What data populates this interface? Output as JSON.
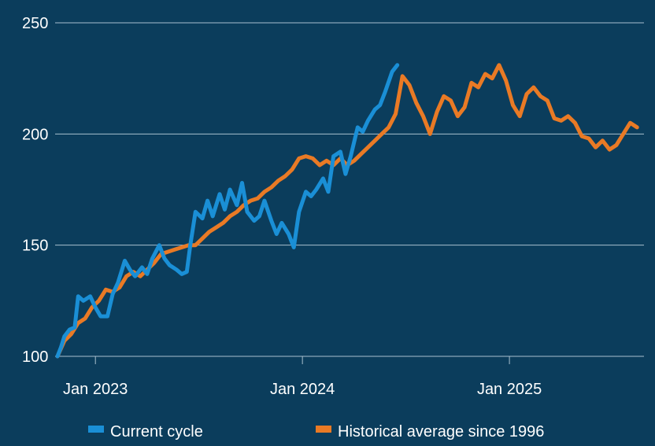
{
  "chart_data": {
    "type": "line",
    "title": "",
    "xlabel": "",
    "ylabel": "",
    "x_axis_unit": "months from Oct 2022",
    "xlim": [
      0.8,
      34.8
    ],
    "ylim": [
      100,
      250
    ],
    "yticks": [
      100,
      150,
      200,
      250
    ],
    "xticks": [
      {
        "label": "Jan 2023",
        "x": 3
      },
      {
        "label": "Jan 2024",
        "x": 15
      },
      {
        "label": "Jan 2025",
        "x": 27
      }
    ],
    "grid": true,
    "legend_position": "bottom",
    "series": [
      {
        "name": "Current cycle",
        "color": "#1a8fd6",
        "points": [
          [
            0.8,
            100
          ],
          [
            1.0,
            104
          ],
          [
            1.2,
            109
          ],
          [
            1.5,
            112
          ],
          [
            1.8,
            113
          ],
          [
            2.0,
            127
          ],
          [
            2.3,
            125
          ],
          [
            2.7,
            127
          ],
          [
            3.0,
            122
          ],
          [
            3.3,
            118
          ],
          [
            3.7,
            118
          ],
          [
            4.0,
            128
          ],
          [
            4.3,
            133
          ],
          [
            4.7,
            143
          ],
          [
            5.0,
            139
          ],
          [
            5.3,
            136
          ],
          [
            5.7,
            140
          ],
          [
            6.0,
            137
          ],
          [
            6.3,
            144
          ],
          [
            6.7,
            150
          ],
          [
            7.0,
            144
          ],
          [
            7.3,
            141
          ],
          [
            7.7,
            139
          ],
          [
            8.0,
            137
          ],
          [
            8.3,
            138
          ],
          [
            8.5,
            150
          ],
          [
            8.8,
            165
          ],
          [
            9.2,
            162
          ],
          [
            9.5,
            170
          ],
          [
            9.8,
            163
          ],
          [
            10.2,
            173
          ],
          [
            10.5,
            166
          ],
          [
            10.8,
            175
          ],
          [
            11.2,
            168
          ],
          [
            11.5,
            178
          ],
          [
            11.8,
            165
          ],
          [
            12.2,
            161
          ],
          [
            12.5,
            163
          ],
          [
            12.8,
            170
          ],
          [
            13.2,
            161
          ],
          [
            13.5,
            155
          ],
          [
            13.8,
            160
          ],
          [
            14.2,
            155
          ],
          [
            14.5,
            149
          ],
          [
            14.8,
            165
          ],
          [
            15.2,
            174
          ],
          [
            15.5,
            172
          ],
          [
            15.8,
            175
          ],
          [
            16.2,
            180
          ],
          [
            16.5,
            174
          ],
          [
            16.8,
            190
          ],
          [
            17.2,
            192
          ],
          [
            17.5,
            182
          ],
          [
            17.8,
            190
          ],
          [
            18.2,
            203
          ],
          [
            18.5,
            201
          ],
          [
            18.8,
            206
          ],
          [
            19.2,
            211
          ],
          [
            19.5,
            213
          ],
          [
            19.8,
            219
          ],
          [
            20.2,
            228
          ],
          [
            20.5,
            231
          ]
        ]
      },
      {
        "name": "Historical average since 1996",
        "color": "#e97a25",
        "points": [
          [
            0.8,
            100
          ],
          [
            1.2,
            107
          ],
          [
            1.6,
            110
          ],
          [
            2.0,
            115
          ],
          [
            2.4,
            117
          ],
          [
            2.8,
            122
          ],
          [
            3.2,
            125
          ],
          [
            3.6,
            130
          ],
          [
            4.0,
            129
          ],
          [
            4.4,
            131
          ],
          [
            4.8,
            136
          ],
          [
            5.2,
            138
          ],
          [
            5.6,
            136
          ],
          [
            6.0,
            139
          ],
          [
            6.4,
            142
          ],
          [
            6.8,
            146
          ],
          [
            7.2,
            147
          ],
          [
            7.6,
            148
          ],
          [
            8.0,
            149
          ],
          [
            8.4,
            150
          ],
          [
            8.8,
            150
          ],
          [
            9.2,
            153
          ],
          [
            9.6,
            156
          ],
          [
            10.0,
            158
          ],
          [
            10.4,
            160
          ],
          [
            10.8,
            163
          ],
          [
            11.2,
            165
          ],
          [
            11.6,
            168
          ],
          [
            12.0,
            170
          ],
          [
            12.4,
            171
          ],
          [
            12.8,
            174
          ],
          [
            13.2,
            176
          ],
          [
            13.6,
            179
          ],
          [
            14.0,
            181
          ],
          [
            14.4,
            184
          ],
          [
            14.8,
            189
          ],
          [
            15.2,
            190
          ],
          [
            15.6,
            189
          ],
          [
            16.0,
            186
          ],
          [
            16.4,
            188
          ],
          [
            16.8,
            186
          ],
          [
            17.2,
            189
          ],
          [
            17.6,
            186
          ],
          [
            18.0,
            188
          ],
          [
            18.4,
            191
          ],
          [
            18.8,
            194
          ],
          [
            19.2,
            197
          ],
          [
            19.6,
            200
          ],
          [
            20.0,
            203
          ],
          [
            20.4,
            209
          ],
          [
            20.8,
            226
          ],
          [
            21.2,
            222
          ],
          [
            21.6,
            214
          ],
          [
            22.0,
            208
          ],
          [
            22.4,
            200
          ],
          [
            22.8,
            210
          ],
          [
            23.2,
            217
          ],
          [
            23.6,
            215
          ],
          [
            24.0,
            208
          ],
          [
            24.4,
            212
          ],
          [
            24.8,
            223
          ],
          [
            25.2,
            221
          ],
          [
            25.6,
            227
          ],
          [
            26.0,
            225
          ],
          [
            26.4,
            231
          ],
          [
            26.8,
            224
          ],
          [
            27.2,
            213
          ],
          [
            27.6,
            208
          ],
          [
            28.0,
            218
          ],
          [
            28.4,
            221
          ],
          [
            28.8,
            217
          ],
          [
            29.2,
            215
          ],
          [
            29.6,
            207
          ],
          [
            30.0,
            206
          ],
          [
            30.4,
            208
          ],
          [
            30.8,
            205
          ],
          [
            31.2,
            199
          ],
          [
            31.6,
            198
          ],
          [
            32.0,
            194
          ],
          [
            32.4,
            197
          ],
          [
            32.8,
            193
          ],
          [
            33.2,
            195
          ],
          [
            33.6,
            200
          ],
          [
            34.0,
            205
          ],
          [
            34.4,
            203
          ]
        ]
      }
    ]
  }
}
